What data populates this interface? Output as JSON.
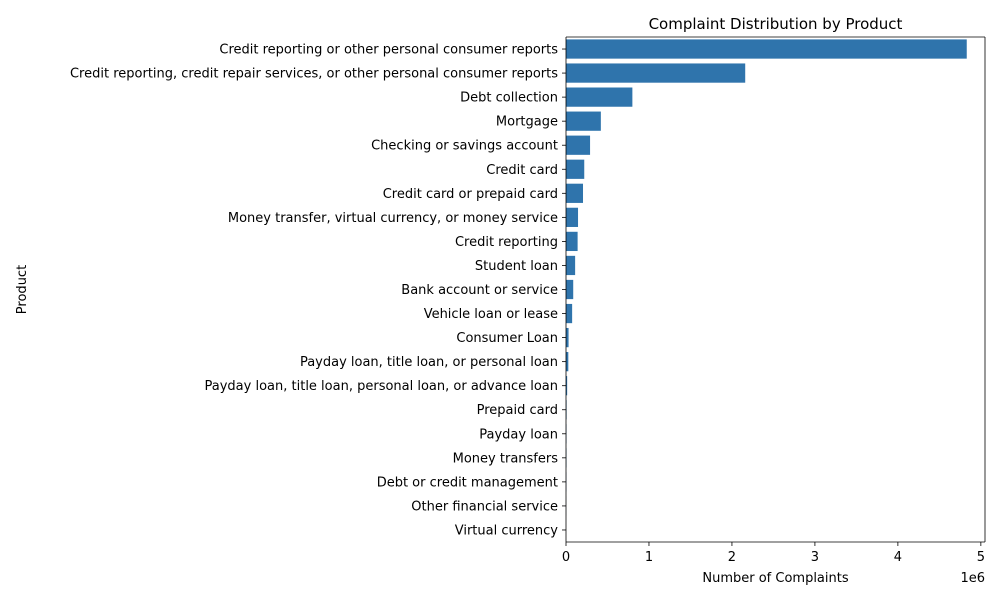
{
  "chart_data": {
    "type": "bar",
    "orientation": "horizontal",
    "title": "Complaint Distribution by Product",
    "xlabel": "Number of Complaints",
    "ylabel": "Product",
    "x_offset_label": "1e6",
    "xlim": [
      0,
      5050000
    ],
    "xticks": [
      0,
      1000000,
      2000000,
      3000000,
      4000000,
      5000000
    ],
    "xtick_labels": [
      "0",
      "1",
      "2",
      "3",
      "4",
      "5"
    ],
    "bar_color": "#2f74ac",
    "categories": [
      "Credit reporting or other personal consumer reports",
      "Credit reporting, credit repair services, or other personal consumer reports",
      "Debt collection",
      "Mortgage",
      "Checking or savings account",
      "Credit card",
      "Credit card or prepaid card",
      "Money transfer, virtual currency, or money service",
      "Credit reporting",
      "Student loan",
      "Bank account or service",
      "Vehicle loan or lease",
      "Consumer Loan",
      "Payday loan, title loan, or personal loan",
      "Payday loan, title loan, personal loan, or advance loan",
      "Prepaid card",
      "Payday loan",
      "Money transfers",
      "Debt or credit management",
      "Other financial service",
      "Virtual currency"
    ],
    "values": [
      4830000,
      2160000,
      800000,
      420000,
      290000,
      220000,
      205000,
      145000,
      140000,
      110000,
      87000,
      74000,
      31000,
      28000,
      14000,
      7000,
      5500,
      5300,
      3000,
      1100,
      20
    ]
  }
}
